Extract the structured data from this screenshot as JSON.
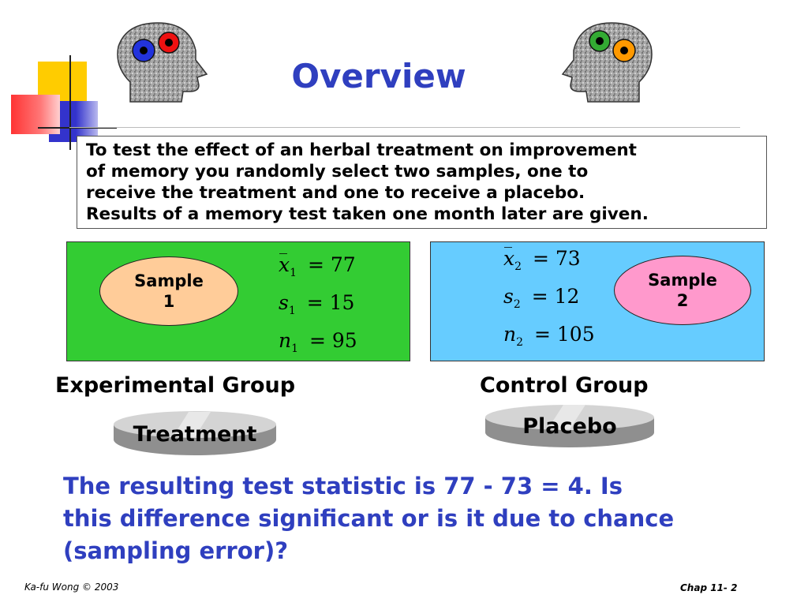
{
  "title": "Overview",
  "intro": {
    "lines": [
      "To test the effect of an herbal treatment on improvement",
      "of memory you randomly select two samples, one to",
      "receive the treatment and one to receive a placebo.",
      "Results of a memory test taken one month later are given."
    ]
  },
  "sample1": {
    "label_line1": "Sample",
    "label_line2": "1",
    "mean_symbol": "x",
    "mean_sub": "1",
    "mean_value": "= 77",
    "sd_symbol": "s",
    "sd_sub": "1",
    "sd_value": "= 15",
    "n_symbol": "n",
    "n_sub": "1",
    "n_value": "= 95",
    "panel_color": "#33cc33",
    "oval_color": "#ffcc99"
  },
  "sample2": {
    "label_line1": "Sample",
    "label_line2": "2",
    "mean_symbol": "x",
    "mean_sub": "2",
    "mean_value": "= 73",
    "sd_symbol": "s",
    "sd_sub": "2",
    "sd_value": "= 12",
    "n_symbol": "n",
    "n_sub": "2",
    "n_value": "= 105",
    "panel_color": "#66ccff",
    "oval_color": "#ff99cc"
  },
  "groups": {
    "experimental": "Experimental Group",
    "control": "Control Group"
  },
  "pills": {
    "treatment": "Treatment",
    "placebo": "Placebo"
  },
  "conclusion": {
    "lines": [
      "The resulting test statistic is 77 - 73 = 4. Is",
      "this difference significant or is it due to chance",
      "(sampling error)?"
    ]
  },
  "footer": {
    "left": "Ka-fu Wong © 2003",
    "right": "Chap 11- 2"
  },
  "colors": {
    "accent": "#2f3fbf",
    "deco_yellow": "#ffcc00",
    "deco_red": "#ff3333",
    "deco_blue": "#3333cc"
  },
  "icons": {
    "left_head": "head-with-gears-icon",
    "right_head": "head-with-gears-icon"
  }
}
